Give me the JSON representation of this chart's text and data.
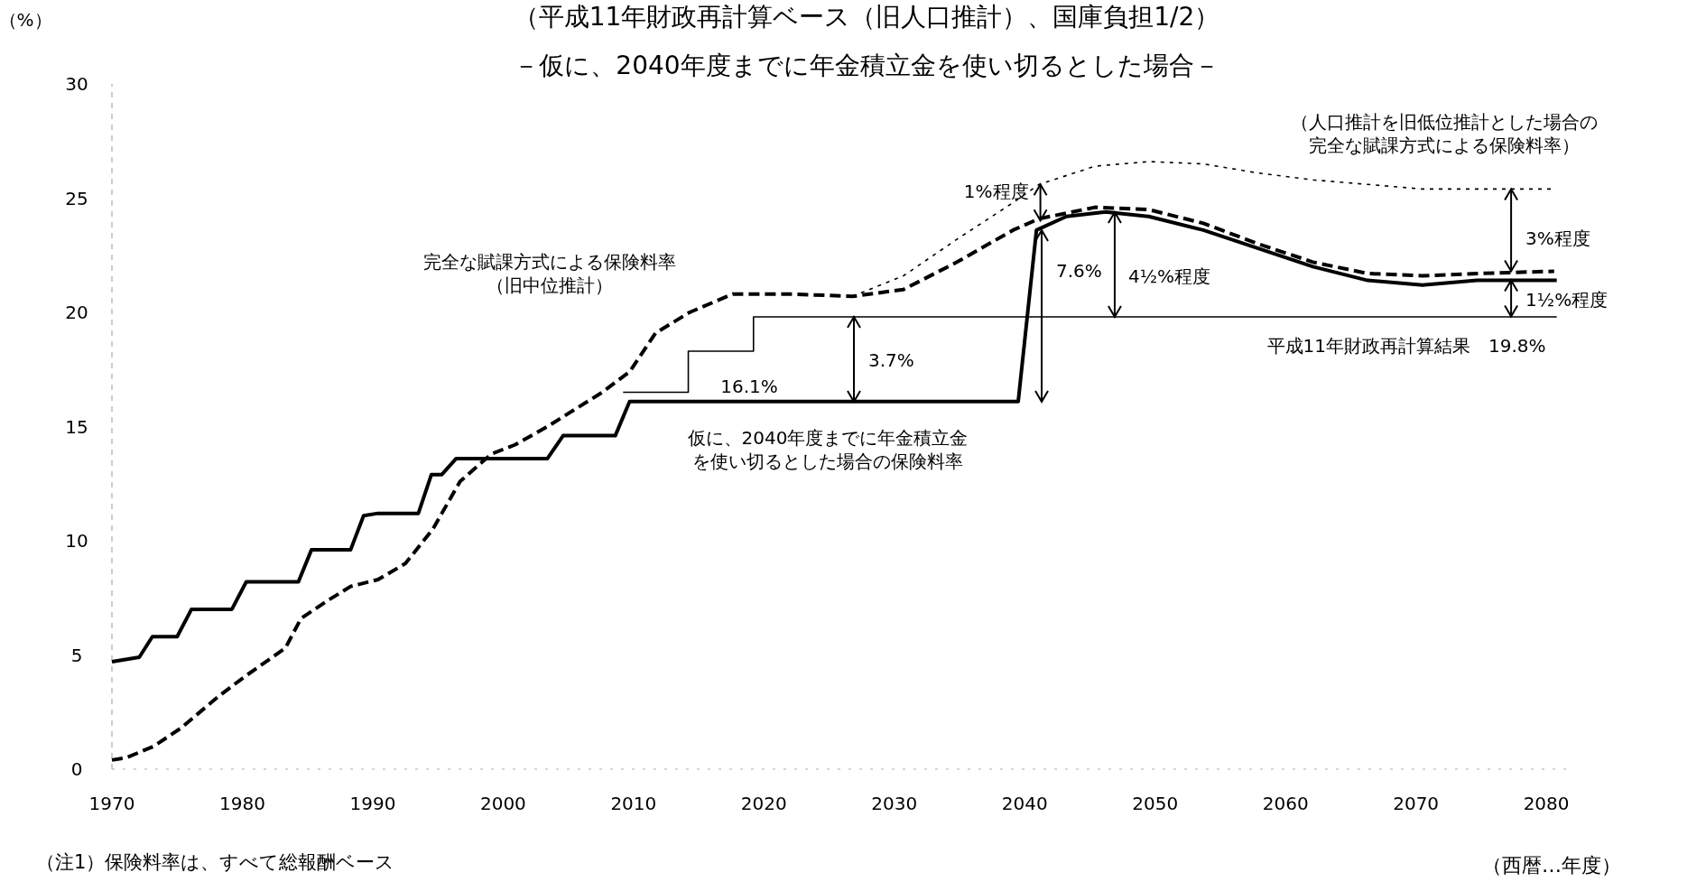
{
  "chart_data": {
    "type": "line",
    "title": "（平成11年財政再計算ベース（旧人口推計）、国庫負担1/2）",
    "subtitle": "－仮に、2040年度までに年金積立金を使い切るとした場合－",
    "xlabel": "（西暦…年度）",
    "ylabel": "（%）",
    "xlim": [
      1970,
      2082
    ],
    "ylim": [
      0,
      30
    ],
    "xticks": [
      1970,
      1980,
      1990,
      2000,
      2010,
      2020,
      2030,
      2040,
      2050,
      2060,
      2070,
      2080
    ],
    "yticks": [
      0,
      5,
      10,
      15,
      20,
      25,
      30
    ],
    "grid": false,
    "marker": "none",
    "series": [
      {
        "color": "#000000",
        "line_style": "solid",
        "x": [
          1970,
          1972.1,
          1973.1,
          1975,
          1976.1,
          1979.2,
          1980.3,
          1984.3,
          1985.3,
          1988.3,
          1989.3,
          1990.4,
          1993.5,
          1994.5,
          1995.3,
          1996.4,
          2003.4,
          2004.6,
          2008.6,
          2009.7,
          2039.5,
          2040.9,
          2043.2,
          2046.2,
          2049.5,
          2053.7,
          2057.9,
          2062.1,
          2066.3,
          2070.5,
          2074.7,
          2080.8
        ],
        "values": [
          4.7,
          4.9,
          5.8,
          5.8,
          7.0,
          7.0,
          8.2,
          8.2,
          9.6,
          9.6,
          11.1,
          11.2,
          11.2,
          12.9,
          12.9,
          13.6,
          13.6,
          14.6,
          14.6,
          16.1,
          16.1,
          23.6,
          24.2,
          24.4,
          24.2,
          23.6,
          22.8,
          22.0,
          21.4,
          21.2,
          21.4,
          21.4
        ]
      },
      {
        "color": "#000000",
        "line_style": "dashed",
        "x": [
          1970,
          1971.1,
          1973.2,
          1975.3,
          1978.2,
          1980.3,
          1983.3,
          1984.5,
          1986.6,
          1988.3,
          1990.4,
          1992.5,
          1994.6,
          1996.7,
          1999.1,
          2000.9,
          2003.4,
          2007.6,
          2009.7,
          2011.7,
          2014.3,
          2017.6,
          2022.2,
          2026.8,
          2030.7,
          2034.8,
          2039.1,
          2041.1,
          2045.4,
          2049.5,
          2053.7,
          2057.9,
          2062.1,
          2066.3,
          2070.5,
          2074.7,
          2080.6
        ],
        "values": [
          0.4,
          0.5,
          1.0,
          1.8,
          3.2,
          4.1,
          5.3,
          6.6,
          7.4,
          8.0,
          8.3,
          9.0,
          10.5,
          12.6,
          13.8,
          14.2,
          15.0,
          16.5,
          17.4,
          19.1,
          20.0,
          20.8,
          20.8,
          20.7,
          21.0,
          22.2,
          23.6,
          24.1,
          24.6,
          24.5,
          23.9,
          23.0,
          22.2,
          21.7,
          21.6,
          21.7,
          21.8
        ]
      },
      {
        "color": "#000000",
        "line_style": "dotted",
        "x": [
          2026.8,
          2030.7,
          2034.8,
          2039.1,
          2041.1,
          2045.4,
          2049.5,
          2053.7,
          2057.9,
          2062.1,
          2066.3,
          2070.5,
          2074.7,
          2080.4
        ],
        "values": [
          20.7,
          21.6,
          23.2,
          24.8,
          25.6,
          26.4,
          26.6,
          26.5,
          26.1,
          25.8,
          25.6,
          25.4,
          25.4,
          25.4
        ]
      },
      {
        "type": "step",
        "color": "#000000",
        "line_style": "solid",
        "x": [
          2009.2,
          2014.2,
          2019.2,
          2080.8
        ],
        "values": [
          16.5,
          18.3,
          19.8,
          19.8
        ]
      }
    ],
    "annotations": [
      "完全な賦課方式による保険料率（旧中位推計）",
      "仮に、2040年度までに年金積立金を使い切るとした場合の保険料率",
      "（人口推計を旧低位推計とした場合の完全な賦課方式による保険料率）",
      "16.1%",
      {
        "text": "3.7%",
        "x": 2026.9,
        "y": 19.8
      },
      {
        "text": "7.6%",
        "x": 2041.3,
        "y": 23.6
      },
      {
        "text": "1%程度",
        "x": 2041.2,
        "y": 25.6
      },
      {
        "text": "4½%程度",
        "x": 2046.9,
        "y": 19.8
      },
      {
        "text": "3%程度",
        "x": 2077.3,
        "y": 25.4
      },
      {
        "text": "1½%程度",
        "x": 2077.3,
        "y": 21.4
      },
      "平成11年財政再計算結果　19.8%",
      "（注1）保険料率は、すべて総報酬ベース"
    ]
  }
}
